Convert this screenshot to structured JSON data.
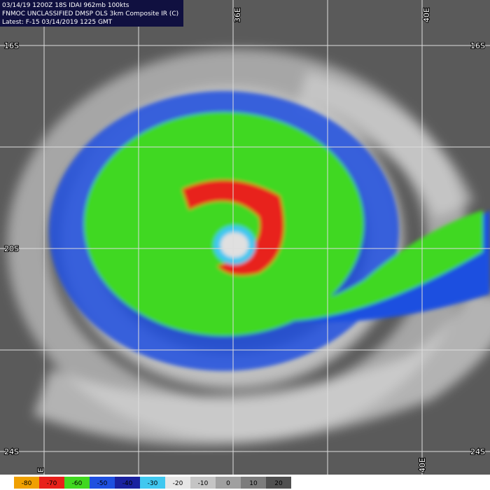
{
  "header": {
    "line1": "03/14/19 1200Z 18S IDAI 962mb 100kts",
    "line2": "FNMOC UNCLASSIFIED DMSP OLS 3km Composite IR (C)",
    "line3": "Latest: F-15 03/14/2019 1225 GMT"
  },
  "labels": [
    "16S",
    "16S",
    "20S",
    "24S",
    "24S",
    "36E",
    "40E",
    "40E",
    "E"
  ],
  "colorbar": {
    "ticks": [
      -80,
      -70,
      -60,
      -50,
      -40,
      -30,
      -20,
      -10,
      0,
      10,
      20
    ],
    "colors": [
      "#f0a000",
      "#e8201a",
      "#40d820",
      "#1e50e0",
      "#1a22a0",
      "#40c8f0",
      "#e6e6e6",
      "#c4c4c4",
      "#a0a0a0",
      "#7c7c7c",
      "#505050"
    ]
  }
}
